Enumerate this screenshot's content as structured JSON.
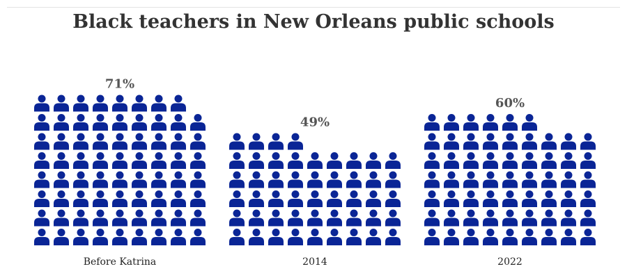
{
  "chart_data": {
    "type": "pictograph",
    "title": "Black teachers in New Orleans public schools",
    "icon": "person-icon",
    "color": "#0a2596",
    "categories": [
      "Before Katrina",
      "2014",
      "2022"
    ],
    "values": [
      71,
      49,
      60
    ],
    "value_labels": [
      "71%",
      "49%",
      "60%"
    ],
    "grid": "9 columns x 10 rows per group (1 icon = 1%)"
  }
}
